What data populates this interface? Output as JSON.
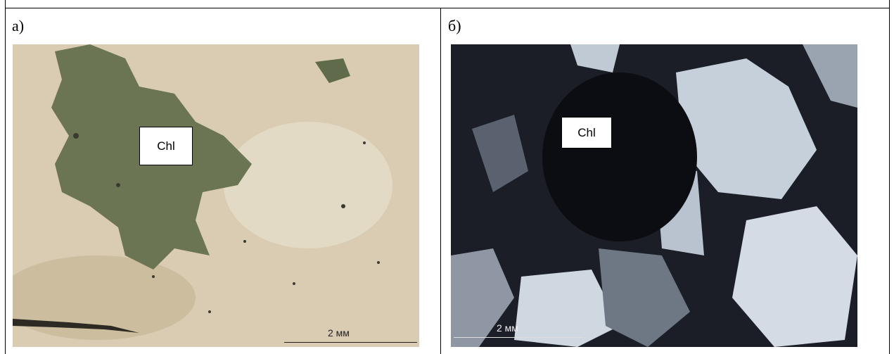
{
  "cells": [
    {
      "label": "а)",
      "image": {
        "annotation": "Chl",
        "scale": "2 мм"
      }
    },
    {
      "label": "б)",
      "image": {
        "annotation": "Chl",
        "scale": "2 мм"
      }
    }
  ]
}
